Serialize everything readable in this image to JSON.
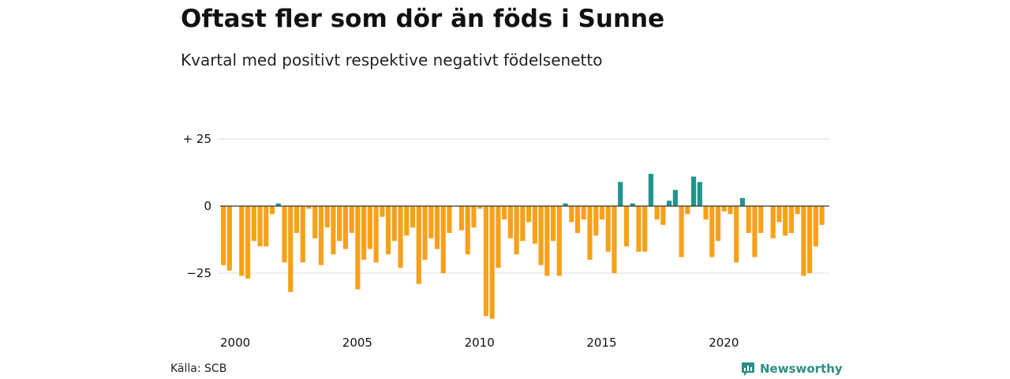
{
  "header": {
    "title": "Oftast fler som dör än föds i Sunne",
    "subtitle": "Kvartal med positivt respektive negativt födelsenetto"
  },
  "footer": {
    "source": "Källa: SCB",
    "brand": "Newsworthy"
  },
  "colors": {
    "positive": "#1f968b",
    "negative": "#f7a11a",
    "grid": "#dddddd",
    "zero_line": "#333333",
    "brand": "#2a8f86"
  },
  "chart_data": {
    "type": "bar",
    "x_start": "2000 Q1",
    "ylim": [
      -45,
      30
    ],
    "y_ticks": [
      {
        "value": 25,
        "label": "+ 25"
      },
      {
        "value": 0,
        "label": "0"
      },
      {
        "value": -25,
        "label": "−25"
      }
    ],
    "x_ticks": [
      {
        "year": 2000,
        "label": "2000"
      },
      {
        "year": 2005,
        "label": "2005"
      },
      {
        "year": 2010,
        "label": "2010"
      },
      {
        "year": 2015,
        "label": "2015"
      },
      {
        "year": 2020,
        "label": "2020"
      }
    ],
    "values": [
      -22,
      -24,
      0,
      -26,
      -27,
      -13,
      -15,
      -15,
      -3,
      1,
      -21,
      -32,
      -10,
      -21,
      -1,
      -12,
      -22,
      -8,
      -18,
      -13,
      -16,
      -10,
      -31,
      -20,
      -16,
      -21,
      -4,
      -18,
      -13,
      -23,
      -11,
      -8,
      -29,
      -20,
      -12,
      -16,
      -25,
      -10,
      0,
      -9,
      -18,
      -8,
      -1,
      -41,
      -42,
      -23,
      -5,
      -12,
      -18,
      -13,
      -6,
      -14,
      -22,
      -26,
      -13,
      -26,
      1,
      -6,
      -10,
      -5,
      -20,
      -11,
      -5,
      -17,
      -25,
      9,
      -15,
      1,
      -17,
      -17,
      12,
      -5,
      -7,
      2,
      6,
      -19,
      -3,
      11,
      9,
      -5,
      -19,
      -13,
      -2,
      -3,
      -21,
      3,
      -10,
      -19,
      -10,
      0,
      -12,
      -6,
      -11,
      -10,
      -3,
      -26,
      -25,
      -15,
      -7
    ]
  }
}
